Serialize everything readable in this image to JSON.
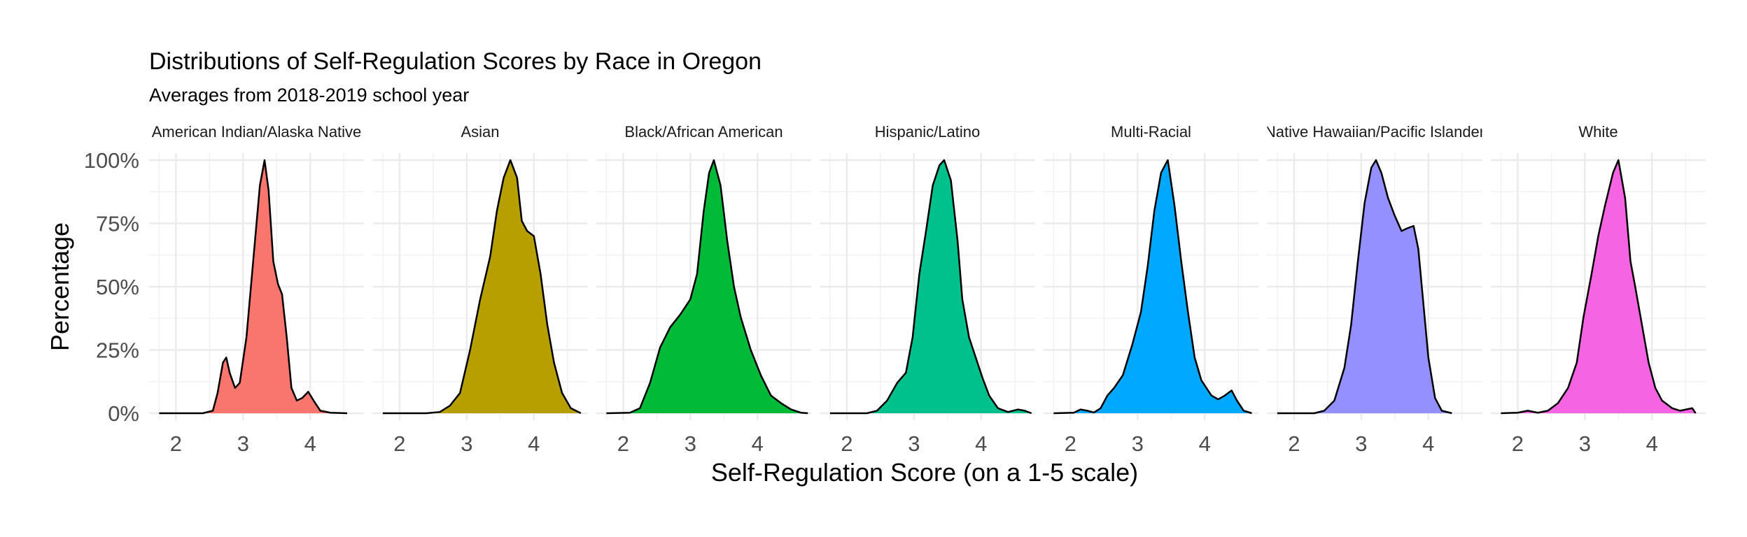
{
  "chart_data": {
    "type": "area",
    "title": "Distributions of Self-Regulation Scores by Race in Oregon",
    "subtitle": "Averages from 2018-2019 school year",
    "xlabel": "Self-Regulation Score (on a 1-5 scale)",
    "ylabel": "Percentage",
    "xlim": [
      1.6,
      4.8
    ],
    "ylim": [
      0,
      1
    ],
    "x_ticks": [
      2,
      3,
      4
    ],
    "x_tick_labels": [
      "2",
      "3",
      "4"
    ],
    "y_ticks": [
      0,
      0.25,
      0.5,
      0.75,
      1.0
    ],
    "y_tick_labels": [
      "0%",
      "25%",
      "50%",
      "75%",
      "100%"
    ],
    "grid": true,
    "legend": "none",
    "outline_color": "#000000",
    "panels": [
      {
        "name": "American Indian/Alaska Native",
        "color": "#F8766D",
        "points": [
          [
            1.75,
            0
          ],
          [
            2.4,
            0
          ],
          [
            2.55,
            0.01
          ],
          [
            2.62,
            0.08
          ],
          [
            2.7,
            0.2
          ],
          [
            2.75,
            0.22
          ],
          [
            2.8,
            0.16
          ],
          [
            2.88,
            0.1
          ],
          [
            2.95,
            0.12
          ],
          [
            3.05,
            0.3
          ],
          [
            3.15,
            0.6
          ],
          [
            3.25,
            0.9
          ],
          [
            3.32,
            1.0
          ],
          [
            3.38,
            0.88
          ],
          [
            3.45,
            0.6
          ],
          [
            3.52,
            0.51
          ],
          [
            3.58,
            0.47
          ],
          [
            3.65,
            0.3
          ],
          [
            3.72,
            0.1
          ],
          [
            3.8,
            0.05
          ],
          [
            3.88,
            0.06
          ],
          [
            3.97,
            0.085
          ],
          [
            4.05,
            0.05
          ],
          [
            4.15,
            0.01
          ],
          [
            4.3,
            0.002
          ],
          [
            4.55,
            0
          ]
        ]
      },
      {
        "name": "Asian",
        "color": "#B79F00",
        "points": [
          [
            1.75,
            0
          ],
          [
            2.4,
            0
          ],
          [
            2.6,
            0.005
          ],
          [
            2.75,
            0.03
          ],
          [
            2.9,
            0.08
          ],
          [
            3.05,
            0.25
          ],
          [
            3.2,
            0.45
          ],
          [
            3.35,
            0.62
          ],
          [
            3.45,
            0.8
          ],
          [
            3.55,
            0.93
          ],
          [
            3.65,
            1.0
          ],
          [
            3.75,
            0.93
          ],
          [
            3.82,
            0.76
          ],
          [
            3.9,
            0.72
          ],
          [
            4.0,
            0.7
          ],
          [
            4.1,
            0.55
          ],
          [
            4.2,
            0.35
          ],
          [
            4.3,
            0.2
          ],
          [
            4.42,
            0.08
          ],
          [
            4.55,
            0.02
          ],
          [
            4.7,
            0
          ]
        ]
      },
      {
        "name": "Black/African American",
        "color": "#00BA38",
        "points": [
          [
            1.75,
            0
          ],
          [
            2.1,
            0.002
          ],
          [
            2.25,
            0.02
          ],
          [
            2.4,
            0.12
          ],
          [
            2.55,
            0.26
          ],
          [
            2.7,
            0.34
          ],
          [
            2.85,
            0.39
          ],
          [
            3.0,
            0.45
          ],
          [
            3.1,
            0.55
          ],
          [
            3.2,
            0.8
          ],
          [
            3.28,
            0.95
          ],
          [
            3.35,
            1.0
          ],
          [
            3.45,
            0.9
          ],
          [
            3.55,
            0.68
          ],
          [
            3.65,
            0.5
          ],
          [
            3.75,
            0.38
          ],
          [
            3.9,
            0.25
          ],
          [
            4.05,
            0.15
          ],
          [
            4.2,
            0.07
          ],
          [
            4.35,
            0.04
          ],
          [
            4.5,
            0.015
          ],
          [
            4.65,
            0.002
          ],
          [
            4.75,
            0
          ]
        ]
      },
      {
        "name": "Hispanic/Latino",
        "color": "#00C08B",
        "points": [
          [
            1.75,
            0
          ],
          [
            2.3,
            0
          ],
          [
            2.45,
            0.01
          ],
          [
            2.6,
            0.05
          ],
          [
            2.75,
            0.12
          ],
          [
            2.88,
            0.16
          ],
          [
            2.98,
            0.3
          ],
          [
            3.08,
            0.55
          ],
          [
            3.18,
            0.72
          ],
          [
            3.28,
            0.9
          ],
          [
            3.38,
            0.98
          ],
          [
            3.45,
            1.0
          ],
          [
            3.55,
            0.92
          ],
          [
            3.65,
            0.68
          ],
          [
            3.72,
            0.45
          ],
          [
            3.82,
            0.3
          ],
          [
            3.92,
            0.22
          ],
          [
            4.02,
            0.14
          ],
          [
            4.12,
            0.07
          ],
          [
            4.25,
            0.02
          ],
          [
            4.4,
            0.005
          ],
          [
            4.55,
            0.015
          ],
          [
            4.65,
            0.01
          ],
          [
            4.75,
            0
          ]
        ]
      },
      {
        "name": "Multi-Racial",
        "color": "#00A9FF",
        "points": [
          [
            1.75,
            0
          ],
          [
            2.05,
            0.002
          ],
          [
            2.15,
            0.015
          ],
          [
            2.25,
            0.01
          ],
          [
            2.35,
            0.003
          ],
          [
            2.45,
            0.02
          ],
          [
            2.55,
            0.07
          ],
          [
            2.65,
            0.1
          ],
          [
            2.78,
            0.15
          ],
          [
            2.92,
            0.27
          ],
          [
            3.05,
            0.4
          ],
          [
            3.15,
            0.58
          ],
          [
            3.25,
            0.8
          ],
          [
            3.35,
            0.95
          ],
          [
            3.45,
            1.0
          ],
          [
            3.55,
            0.82
          ],
          [
            3.65,
            0.6
          ],
          [
            3.75,
            0.4
          ],
          [
            3.85,
            0.22
          ],
          [
            3.95,
            0.13
          ],
          [
            4.1,
            0.07
          ],
          [
            4.2,
            0.055
          ],
          [
            4.3,
            0.07
          ],
          [
            4.4,
            0.09
          ],
          [
            4.48,
            0.05
          ],
          [
            4.58,
            0.01
          ],
          [
            4.7,
            0
          ]
        ]
      },
      {
        "name": "Native Hawaiian/Pacific Islander",
        "color": "#9590FF",
        "points": [
          [
            1.75,
            0
          ],
          [
            2.3,
            0
          ],
          [
            2.45,
            0.01
          ],
          [
            2.6,
            0.05
          ],
          [
            2.75,
            0.18
          ],
          [
            2.85,
            0.35
          ],
          [
            2.95,
            0.6
          ],
          [
            3.05,
            0.83
          ],
          [
            3.15,
            0.97
          ],
          [
            3.22,
            1.0
          ],
          [
            3.3,
            0.95
          ],
          [
            3.4,
            0.85
          ],
          [
            3.5,
            0.78
          ],
          [
            3.6,
            0.72
          ],
          [
            3.68,
            0.73
          ],
          [
            3.78,
            0.74
          ],
          [
            3.85,
            0.65
          ],
          [
            3.92,
            0.45
          ],
          [
            4.0,
            0.22
          ],
          [
            4.1,
            0.06
          ],
          [
            4.2,
            0.01
          ],
          [
            4.35,
            0
          ]
        ]
      },
      {
        "name": "White",
        "color": "#F564E3",
        "points": [
          [
            1.75,
            0
          ],
          [
            2.0,
            0.002
          ],
          [
            2.15,
            0.01
          ],
          [
            2.3,
            0.002
          ],
          [
            2.45,
            0.01
          ],
          [
            2.6,
            0.04
          ],
          [
            2.75,
            0.1
          ],
          [
            2.88,
            0.2
          ],
          [
            2.98,
            0.38
          ],
          [
            3.1,
            0.55
          ],
          [
            3.2,
            0.7
          ],
          [
            3.3,
            0.82
          ],
          [
            3.42,
            0.95
          ],
          [
            3.5,
            1.0
          ],
          [
            3.6,
            0.85
          ],
          [
            3.68,
            0.6
          ],
          [
            3.75,
            0.5
          ],
          [
            3.85,
            0.35
          ],
          [
            3.95,
            0.2
          ],
          [
            4.05,
            0.1
          ],
          [
            4.15,
            0.05
          ],
          [
            4.3,
            0.02
          ],
          [
            4.42,
            0.01
          ],
          [
            4.6,
            0.02
          ],
          [
            4.65,
            0
          ]
        ]
      }
    ]
  }
}
